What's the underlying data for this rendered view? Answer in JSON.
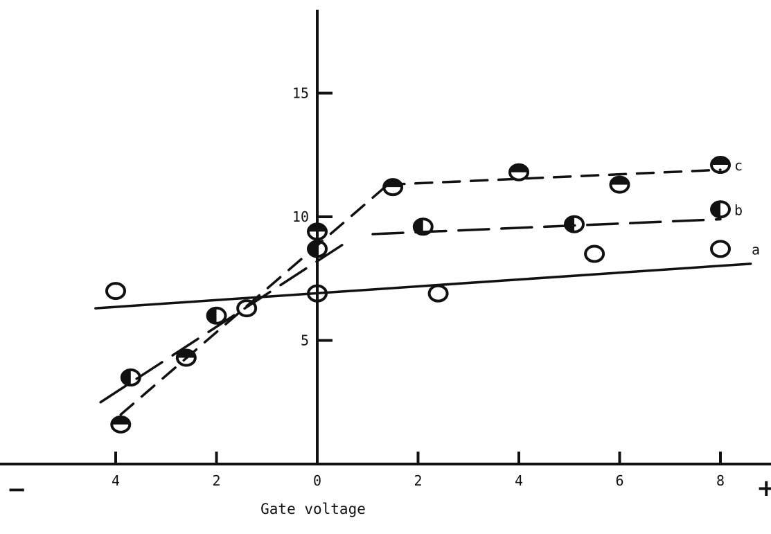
{
  "chart_data": {
    "type": "scatter",
    "title": "",
    "xlabel": "Gate voltage",
    "ylabel": "",
    "negative_sign": "−",
    "positive_sign": "+",
    "xlim": [
      -6.3,
      8.9
    ],
    "ylim": [
      0,
      18.3
    ],
    "x_ticks": [
      {
        "value": -4,
        "label": "4"
      },
      {
        "value": -2,
        "label": "2"
      },
      {
        "value": 0,
        "label": "0"
      },
      {
        "value": 2,
        "label": "2"
      },
      {
        "value": 4,
        "label": "4"
      },
      {
        "value": 6,
        "label": "6"
      },
      {
        "value": 8,
        "label": "8"
      }
    ],
    "y_ticks": [
      {
        "value": 5,
        "label": "5"
      },
      {
        "value": 10,
        "label": "10"
      },
      {
        "value": 15,
        "label": "15"
      }
    ],
    "grid": false,
    "series": [
      {
        "name": "a",
        "line_style": "solid",
        "marker": "open circle",
        "points": [
          [
            -4.0,
            7.0
          ],
          [
            -1.4,
            6.3
          ],
          [
            0.0,
            6.9
          ],
          [
            2.4,
            6.9
          ],
          [
            5.5,
            8.5
          ],
          [
            8.0,
            8.7
          ]
        ],
        "fit": [
          [
            [
              -4.4,
              6.3
            ],
            [
              8.6,
              8.1
            ]
          ]
        ]
      },
      {
        "name": "b",
        "line_style": "long dash",
        "marker": "half-filled circle (vertical split)",
        "points": [
          [
            -3.7,
            3.5
          ],
          [
            -2.0,
            6.0
          ],
          [
            0.0,
            8.7
          ],
          [
            2.1,
            9.6
          ],
          [
            5.1,
            9.7
          ],
          [
            8.0,
            10.3
          ]
        ],
        "fit": [
          [
            [
              -4.3,
              2.5
            ],
            [
              0.6,
              9.0
            ]
          ],
          [
            [
              1.1,
              9.3
            ],
            [
              8.0,
              9.9
            ]
          ]
        ]
      },
      {
        "name": "c",
        "line_style": "short dash",
        "marker": "half-filled circle (horizontal split)",
        "points": [
          [
            -3.9,
            1.6
          ],
          [
            -2.6,
            4.3
          ],
          [
            0.0,
            9.4
          ],
          [
            1.5,
            11.2
          ],
          [
            4.0,
            11.8
          ],
          [
            6.0,
            11.3
          ],
          [
            8.0,
            12.1
          ]
        ],
        "fit": [
          [
            [
              -3.9,
              2.0
            ],
            [
              1.4,
              11.3
            ]
          ],
          [
            [
              1.4,
              11.3
            ],
            [
              8.0,
              11.9
            ]
          ]
        ]
      }
    ]
  }
}
